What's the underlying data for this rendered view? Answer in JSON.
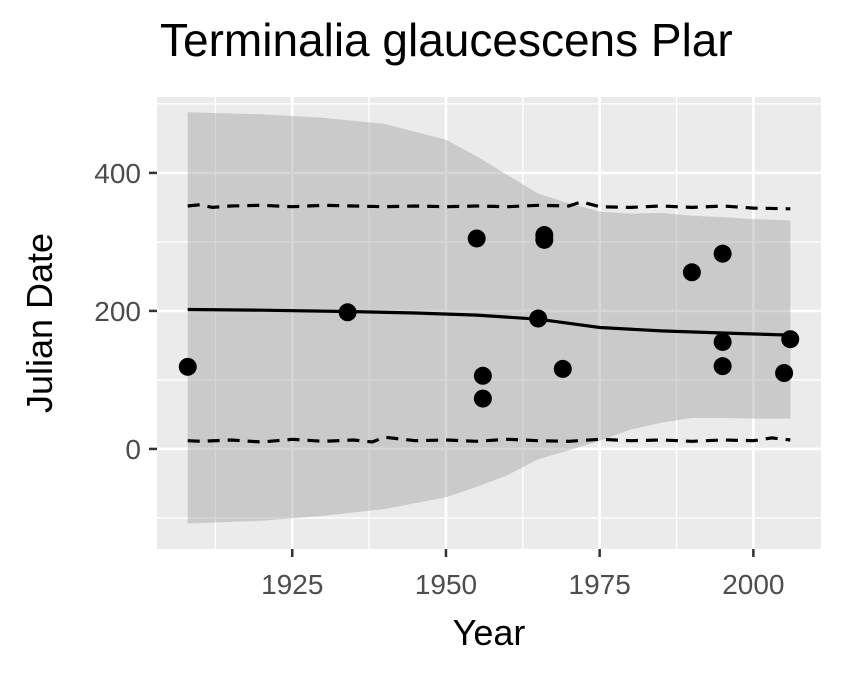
{
  "chart_data": {
    "type": "scatter",
    "title": "Terminalia glaucescens Plar",
    "xlabel": "Year",
    "ylabel": "Julian Date",
    "xlim": [
      1903,
      2011
    ],
    "ylim": [
      -145,
      510
    ],
    "xticks": [
      1925,
      1950,
      1975,
      2000
    ],
    "yticks": [
      0,
      200,
      400
    ],
    "grid": true,
    "points": [
      {
        "x": 1908,
        "y": 119
      },
      {
        "x": 1934,
        "y": 198
      },
      {
        "x": 1955,
        "y": 305
      },
      {
        "x": 1956,
        "y": 106
      },
      {
        "x": 1956,
        "y": 73
      },
      {
        "x": 1965,
        "y": 189
      },
      {
        "x": 1966,
        "y": 310
      },
      {
        "x": 1966,
        "y": 303
      },
      {
        "x": 1969,
        "y": 116
      },
      {
        "x": 1990,
        "y": 256
      },
      {
        "x": 1995,
        "y": 283
      },
      {
        "x": 1995,
        "y": 155
      },
      {
        "x": 1995,
        "y": 120
      },
      {
        "x": 2005,
        "y": 110
      },
      {
        "x": 2006,
        "y": 159
      }
    ],
    "fit_line": {
      "x": [
        1908,
        1920,
        1935,
        1945,
        1955,
        1965,
        1970,
        1975,
        1985,
        1995,
        2006
      ],
      "y": [
        202,
        201,
        199,
        197,
        194,
        188,
        182,
        176,
        171,
        168,
        165
      ]
    },
    "confidence_band": {
      "x": [
        1908,
        1920,
        1930,
        1940,
        1950,
        1955,
        1960,
        1965,
        1970,
        1975,
        1980,
        1985,
        1990,
        1995,
        2000,
        2006
      ],
      "upper": [
        488,
        485,
        480,
        471,
        448,
        424,
        397,
        370,
        356,
        344,
        341,
        342,
        338,
        336,
        333,
        331
      ],
      "lower": [
        -108,
        -104,
        -97,
        -87,
        -70,
        -55,
        -38,
        -15,
        -2,
        12,
        28,
        38,
        45,
        45,
        44,
        44
      ]
    },
    "prediction_upper": {
      "x": [
        1908,
        1910,
        1912,
        1915,
        1920,
        1925,
        1930,
        1935,
        1940,
        1945,
        1950,
        1955,
        1960,
        1965,
        1970,
        1972,
        1975,
        1980,
        1985,
        1990,
        1995,
        2000,
        2006
      ],
      "y": [
        352,
        354,
        350,
        352,
        353,
        351,
        353,
        352,
        351,
        352,
        351,
        352,
        351,
        353,
        352,
        358,
        351,
        350,
        352,
        350,
        352,
        349,
        348
      ]
    },
    "prediction_lower": {
      "x": [
        1908,
        1910,
        1915,
        1920,
        1925,
        1930,
        1935,
        1938,
        1940,
        1945,
        1950,
        1955,
        1960,
        1965,
        1970,
        1975,
        1980,
        1985,
        1990,
        1995,
        2000,
        2003,
        2006
      ],
      "y": [
        12,
        11,
        13,
        10,
        14,
        11,
        13,
        10,
        17,
        12,
        13,
        11,
        14,
        12,
        11,
        14,
        12,
        13,
        11,
        13,
        12,
        16,
        13
      ]
    }
  }
}
